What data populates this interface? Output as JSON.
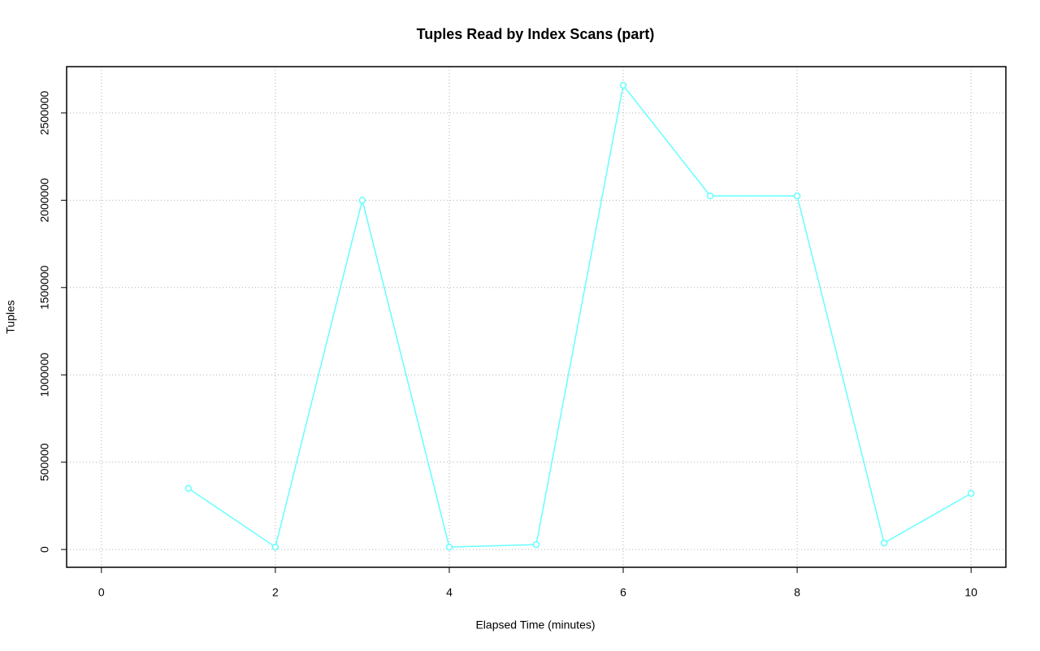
{
  "chart_data": {
    "type": "line",
    "title": "Tuples Read by Index Scans (part)",
    "x_label": "Elapsed Time (minutes)",
    "y_label": "Tuples",
    "x": [
      1,
      2,
      3,
      4,
      5,
      6,
      7,
      8,
      9,
      10
    ],
    "series": [
      {
        "name": "Tuples",
        "color": "#66ffff",
        "values": [
          350000,
          14000,
          2000000,
          14000,
          28000,
          2658000,
          2025000,
          2025000,
          37000,
          321000
        ]
      }
    ],
    "xlim": [
      -0.4,
      10.4
    ],
    "xticks": [
      0,
      2,
      4,
      6,
      8,
      10
    ],
    "ylim": [
      -102000,
      2765000
    ],
    "yticks": [
      0,
      500000,
      1000000,
      1500000,
      2000000,
      2500000
    ],
    "grid": true
  }
}
